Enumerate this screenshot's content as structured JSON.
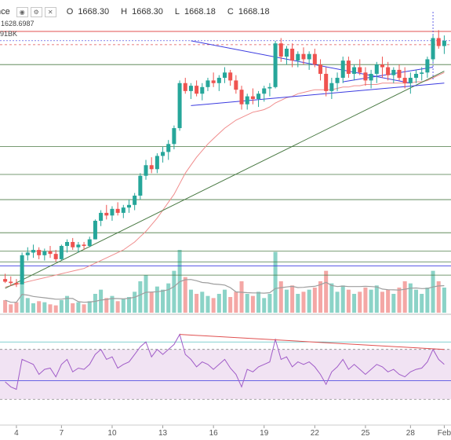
{
  "legend": {
    "symbol_fragment": "nce",
    "open_label": "O",
    "open": "1668.30",
    "high_label": "H",
    "high": "1668.30",
    "low_label": "L",
    "low": "1668.18",
    "close_label": "C",
    "close": "1668.18",
    "ma_value": "1628.6987",
    "volume_value": "91BK"
  },
  "colors": {
    "up": "#26a69a",
    "down": "#ef5350",
    "up_volume": "#8bd3c7",
    "down_volume": "#f4a7a5",
    "ma": "#f08c8c",
    "trendline": "#4a7a44",
    "triangle": "#3b3be0",
    "rsi_line": "#a05cc8",
    "rsi_band": "#f1e3f3",
    "horizontal": "#4a7a44",
    "price_line": "#e05050"
  },
  "chart_data": {
    "type": "candlestick",
    "x_tick_labels": [
      "4",
      "7",
      "10",
      "13",
      "16",
      "19",
      "22",
      "25",
      "28",
      "Feb"
    ],
    "price_ylim": [
      1490,
      1690
    ],
    "candles": [
      [
        1500,
        1504,
        1497,
        1498
      ],
      [
        1498,
        1502,
        1495,
        1497
      ],
      [
        1497,
        1500,
        1494,
        1496
      ],
      [
        1496,
        1520,
        1496,
        1518
      ],
      [
        1518,
        1524,
        1514,
        1520
      ],
      [
        1520,
        1526,
        1516,
        1522
      ],
      [
        1522,
        1524,
        1515,
        1518
      ],
      [
        1518,
        1523,
        1514,
        1521
      ],
      [
        1521,
        1525,
        1516,
        1519
      ],
      [
        1519,
        1522,
        1513,
        1515
      ],
      [
        1515,
        1526,
        1514,
        1525
      ],
      [
        1525,
        1530,
        1520,
        1528
      ],
      [
        1528,
        1531,
        1522,
        1524
      ],
      [
        1524,
        1528,
        1520,
        1526
      ],
      [
        1526,
        1528,
        1522,
        1525
      ],
      [
        1525,
        1532,
        1524,
        1530
      ],
      [
        1530,
        1545,
        1530,
        1544
      ],
      [
        1544,
        1552,
        1540,
        1550
      ],
      [
        1550,
        1556,
        1545,
        1548
      ],
      [
        1548,
        1555,
        1544,
        1553
      ],
      [
        1553,
        1558,
        1548,
        1550
      ],
      [
        1550,
        1556,
        1546,
        1554
      ],
      [
        1554,
        1560,
        1550,
        1556
      ],
      [
        1556,
        1565,
        1552,
        1563
      ],
      [
        1563,
        1580,
        1560,
        1578
      ],
      [
        1578,
        1590,
        1575,
        1586
      ],
      [
        1586,
        1592,
        1580,
        1583
      ],
      [
        1583,
        1595,
        1580,
        1593
      ],
      [
        1593,
        1600,
        1588,
        1596
      ],
      [
        1596,
        1605,
        1590,
        1602
      ],
      [
        1602,
        1616,
        1598,
        1614
      ],
      [
        1614,
        1650,
        1612,
        1648
      ],
      [
        1648,
        1652,
        1640,
        1642
      ],
      [
        1642,
        1648,
        1636,
        1646
      ],
      [
        1646,
        1650,
        1638,
        1640
      ],
      [
        1640,
        1648,
        1635,
        1645
      ],
      [
        1645,
        1652,
        1642,
        1650
      ],
      [
        1650,
        1656,
        1645,
        1648
      ],
      [
        1648,
        1654,
        1642,
        1652
      ],
      [
        1652,
        1660,
        1648,
        1656
      ],
      [
        1656,
        1658,
        1646,
        1650
      ],
      [
        1650,
        1654,
        1640,
        1643
      ],
      [
        1643,
        1646,
        1628,
        1632
      ],
      [
        1632,
        1640,
        1628,
        1638
      ],
      [
        1638,
        1644,
        1632,
        1636
      ],
      [
        1636,
        1642,
        1630,
        1640
      ],
      [
        1640,
        1646,
        1634,
        1644
      ],
      [
        1644,
        1648,
        1638,
        1645
      ],
      [
        1645,
        1680,
        1644,
        1678
      ],
      [
        1678,
        1682,
        1664,
        1668
      ],
      [
        1668,
        1676,
        1662,
        1674
      ],
      [
        1674,
        1678,
        1660,
        1665
      ],
      [
        1665,
        1672,
        1660,
        1670
      ],
      [
        1670,
        1675,
        1662,
        1666
      ],
      [
        1666,
        1672,
        1658,
        1670
      ],
      [
        1670,
        1674,
        1660,
        1662
      ],
      [
        1662,
        1666,
        1650,
        1655
      ],
      [
        1655,
        1660,
        1638,
        1642
      ],
      [
        1642,
        1652,
        1636,
        1648
      ],
      [
        1648,
        1656,
        1642,
        1652
      ],
      [
        1652,
        1668,
        1648,
        1665
      ],
      [
        1665,
        1668,
        1652,
        1655
      ],
      [
        1655,
        1662,
        1650,
        1660
      ],
      [
        1660,
        1666,
        1654,
        1656
      ],
      [
        1656,
        1660,
        1646,
        1650
      ],
      [
        1650,
        1658,
        1644,
        1655
      ],
      [
        1655,
        1664,
        1648,
        1662
      ],
      [
        1662,
        1668,
        1652,
        1660
      ],
      [
        1660,
        1664,
        1650,
        1654
      ],
      [
        1654,
        1660,
        1648,
        1658
      ],
      [
        1658,
        1662,
        1650,
        1652
      ],
      [
        1652,
        1660,
        1644,
        1648
      ],
      [
        1648,
        1656,
        1640,
        1652
      ],
      [
        1652,
        1658,
        1648,
        1655
      ],
      [
        1655,
        1660,
        1650,
        1656
      ],
      [
        1656,
        1668,
        1652,
        1666
      ],
      [
        1666,
        1684,
        1664,
        1682
      ],
      [
        1682,
        1688,
        1674,
        1676
      ],
      [
        1676,
        1684,
        1670,
        1680
      ]
    ],
    "volume": [
      12,
      8,
      10,
      40,
      14,
      9,
      11,
      10,
      8,
      7,
      12,
      16,
      9,
      10,
      8,
      11,
      18,
      22,
      14,
      16,
      11,
      13,
      15,
      20,
      30,
      36,
      20,
      25,
      22,
      28,
      40,
      60,
      34,
      22,
      18,
      20,
      16,
      14,
      18,
      22,
      15,
      20,
      30,
      18,
      16,
      20,
      14,
      18,
      58,
      30,
      22,
      26,
      18,
      20,
      22,
      24,
      30,
      40,
      28,
      20,
      26,
      22,
      18,
      20,
      24,
      22,
      26,
      20,
      22,
      18,
      24,
      30,
      28,
      22,
      18,
      24,
      40,
      30,
      24
    ],
    "ma": [
      1494,
      1495,
      1496,
      1497,
      1498,
      1499,
      1500,
      1501,
      1502,
      1503,
      1504,
      1505,
      1506,
      1507,
      1508,
      1510,
      1512,
      1514,
      1516,
      1518,
      1520,
      1522,
      1525,
      1528,
      1532,
      1536,
      1541,
      1546,
      1552,
      1558,
      1564,
      1572,
      1580,
      1586,
      1592,
      1597,
      1602,
      1606,
      1610,
      1614,
      1617,
      1620,
      1622,
      1624,
      1626,
      1627,
      1628,
      1630,
      1633,
      1635,
      1637,
      1638,
      1640,
      1641,
      1642,
      1643,
      1643,
      1643,
      1643,
      1644,
      1645,
      1645,
      1646,
      1646,
      1647,
      1647,
      1647,
      1648,
      1648,
      1648,
      1648,
      1648,
      1648,
      1649,
      1649,
      1650,
      1652,
      1654,
      1656
    ],
    "rsi": [
      44,
      40,
      38,
      62,
      60,
      58,
      50,
      54,
      55,
      48,
      58,
      62,
      52,
      55,
      54,
      58,
      66,
      70,
      62,
      64,
      55,
      58,
      60,
      66,
      72,
      76,
      64,
      70,
      66,
      70,
      74,
      82,
      66,
      62,
      56,
      60,
      58,
      54,
      58,
      62,
      55,
      50,
      40,
      54,
      52,
      56,
      58,
      60,
      78,
      62,
      64,
      56,
      60,
      58,
      60,
      56,
      50,
      42,
      52,
      56,
      62,
      54,
      58,
      54,
      50,
      54,
      58,
      56,
      52,
      54,
      50,
      48,
      52,
      54,
      55,
      60,
      70,
      62,
      58
    ],
    "rsi_ylim": [
      10,
      95
    ],
    "rsi_band": [
      30,
      70
    ]
  }
}
